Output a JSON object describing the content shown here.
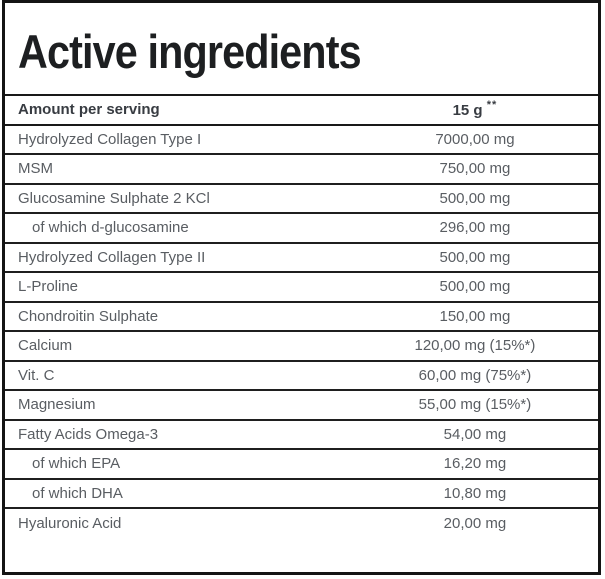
{
  "panel": {
    "title": "Active ingredients"
  },
  "table": {
    "header": {
      "label": "Amount per serving",
      "value": "15 g",
      "value_sup": "**"
    },
    "rows": [
      {
        "label": "Hydrolyzed Collagen Type I",
        "value": "7000,00 mg",
        "indent": false
      },
      {
        "label": "MSM",
        "value": "750,00 mg",
        "indent": false
      },
      {
        "label": "Glucosamine Sulphate 2 KCl",
        "value": "500,00 mg",
        "indent": false
      },
      {
        "label": "of which d-glucosamine",
        "value": "296,00 mg",
        "indent": true
      },
      {
        "label": "Hydrolyzed Collagen Type II",
        "value": "500,00 mg",
        "indent": false
      },
      {
        "label": "L-Proline",
        "value": "500,00 mg",
        "indent": false
      },
      {
        "label": "Chondroitin Sulphate",
        "value": "150,00 mg",
        "indent": false
      },
      {
        "label": "Calcium",
        "value": "120,00 mg (15%*)",
        "indent": false
      },
      {
        "label": "Vit. C",
        "value": "60,00 mg (75%*)",
        "indent": false
      },
      {
        "label": "Magnesium",
        "value": "55,00 mg (15%*)",
        "indent": false
      },
      {
        "label": "Fatty Acids Omega-3",
        "value": "54,00 mg",
        "indent": false
      },
      {
        "label": "of which EPA",
        "value": "16,20 mg",
        "indent": true
      },
      {
        "label": "of which DHA",
        "value": "10,80 mg",
        "indent": true
      },
      {
        "label": "Hyaluronic Acid",
        "value": "20,00 mg",
        "indent": false
      }
    ]
  },
  "colors": {
    "panel_border": "#141414",
    "title_text": "#1d1f21",
    "header_text": "#383c42",
    "row_text": "#595d62",
    "line": "#1f1f1f",
    "background": "#ffffff"
  }
}
